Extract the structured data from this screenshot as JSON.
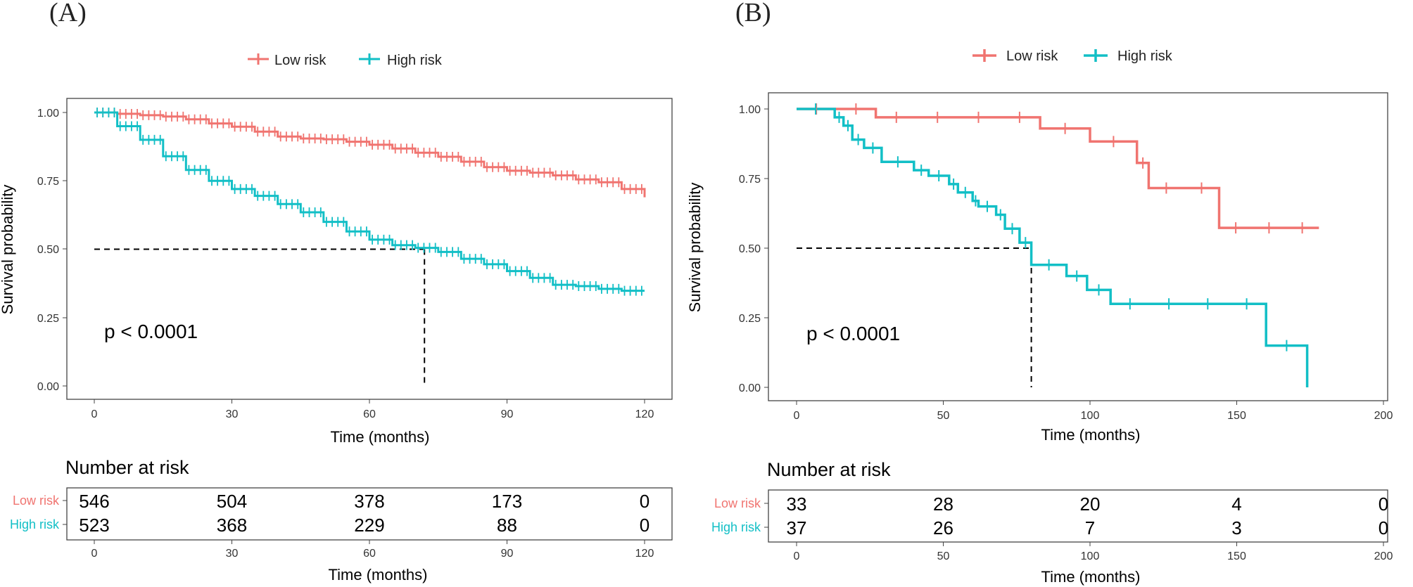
{
  "colors": {
    "low": "#F07470",
    "high": "#12BFC6",
    "axis": "#444444"
  },
  "chart_data": [
    {
      "type": "line",
      "subtype": "kaplan-meier",
      "panel_label": "(A)",
      "legend": [
        "Low risk",
        "High risk"
      ],
      "xlabel": "Time (months)",
      "ylabel": "Survival probability",
      "xlim": [
        0,
        120
      ],
      "ylim": [
        0,
        1
      ],
      "xticks": [
        "0",
        "30",
        "60",
        "90",
        "120"
      ],
      "yticks": [
        "0.00",
        "0.25",
        "0.50",
        "0.75",
        "1.00"
      ],
      "pvalue": "p < 0.0001",
      "median": {
        "x": 72,
        "y": 0.5
      },
      "series": [
        {
          "name": "Low risk",
          "x": [
            0,
            5,
            10,
            15,
            20,
            25,
            30,
            35,
            40,
            45,
            50,
            55,
            60,
            65,
            70,
            75,
            80,
            85,
            90,
            95,
            100,
            105,
            110,
            115,
            120
          ],
          "y": [
            1.0,
            0.995,
            0.99,
            0.985,
            0.975,
            0.96,
            0.948,
            0.93,
            0.912,
            0.905,
            0.902,
            0.893,
            0.882,
            0.868,
            0.853,
            0.838,
            0.82,
            0.8,
            0.787,
            0.78,
            0.77,
            0.755,
            0.745,
            0.72,
            0.69
          ]
        },
        {
          "name": "High risk",
          "x": [
            0,
            5,
            10,
            15,
            20,
            25,
            30,
            35,
            40,
            45,
            50,
            55,
            60,
            65,
            70,
            75,
            80,
            85,
            90,
            95,
            100,
            105,
            110,
            115,
            120
          ],
          "y": [
            1.0,
            0.95,
            0.9,
            0.84,
            0.79,
            0.75,
            0.72,
            0.695,
            0.665,
            0.635,
            0.6,
            0.565,
            0.535,
            0.515,
            0.505,
            0.49,
            0.465,
            0.445,
            0.42,
            0.395,
            0.37,
            0.365,
            0.355,
            0.348,
            0.348
          ]
        }
      ],
      "risk_table": {
        "title": "Number at risk",
        "xlabel": "Time (months)",
        "times": [
          "0",
          "30",
          "60",
          "90",
          "120"
        ],
        "rows": [
          {
            "label": "Low risk",
            "values": [
              "546",
              "504",
              "378",
              "173",
              "0"
            ]
          },
          {
            "label": "High risk",
            "values": [
              "523",
              "368",
              "229",
              "88",
              "0"
            ]
          }
        ]
      }
    },
    {
      "type": "line",
      "subtype": "kaplan-meier",
      "panel_label": "(B)",
      "legend": [
        "Low risk",
        "High risk"
      ],
      "xlabel": "Time (months)",
      "ylabel": "Survival probability",
      "xlim": [
        0,
        200
      ],
      "ylim": [
        0,
        1
      ],
      "xticks": [
        "0",
        "50",
        "100",
        "150",
        "200"
      ],
      "yticks": [
        "0.00",
        "0.25",
        "0.50",
        "0.75",
        "1.00"
      ],
      "pvalue": "p < 0.0001",
      "median": {
        "x": 80,
        "y": 0.5
      },
      "series": [
        {
          "name": "Low risk",
          "x": [
            0,
            27,
            83,
            100,
            116,
            120,
            144,
            178
          ],
          "y": [
            1.0,
            0.97,
            0.93,
            0.883,
            0.806,
            0.716,
            0.573,
            0.573
          ]
        },
        {
          "name": "High risk",
          "x": [
            0,
            13,
            16,
            19,
            23,
            29,
            40,
            45,
            52,
            55,
            60,
            62,
            68,
            71,
            76,
            80,
            92,
            99,
            107,
            160,
            174
          ],
          "y": [
            1.0,
            0.97,
            0.94,
            0.89,
            0.86,
            0.81,
            0.78,
            0.76,
            0.73,
            0.7,
            0.67,
            0.65,
            0.62,
            0.57,
            0.52,
            0.44,
            0.4,
            0.35,
            0.3,
            0.15,
            0.0
          ]
        }
      ],
      "risk_table": {
        "title": "Number at risk",
        "xlabel": "Time (months)",
        "times": [
          "0",
          "50",
          "100",
          "150",
          "200"
        ],
        "rows": [
          {
            "label": "Low risk",
            "values": [
              "33",
              "28",
              "20",
              "4",
              "0"
            ]
          },
          {
            "label": "High risk",
            "values": [
              "37",
              "26",
              "7",
              "3",
              "0"
            ]
          }
        ]
      }
    }
  ]
}
